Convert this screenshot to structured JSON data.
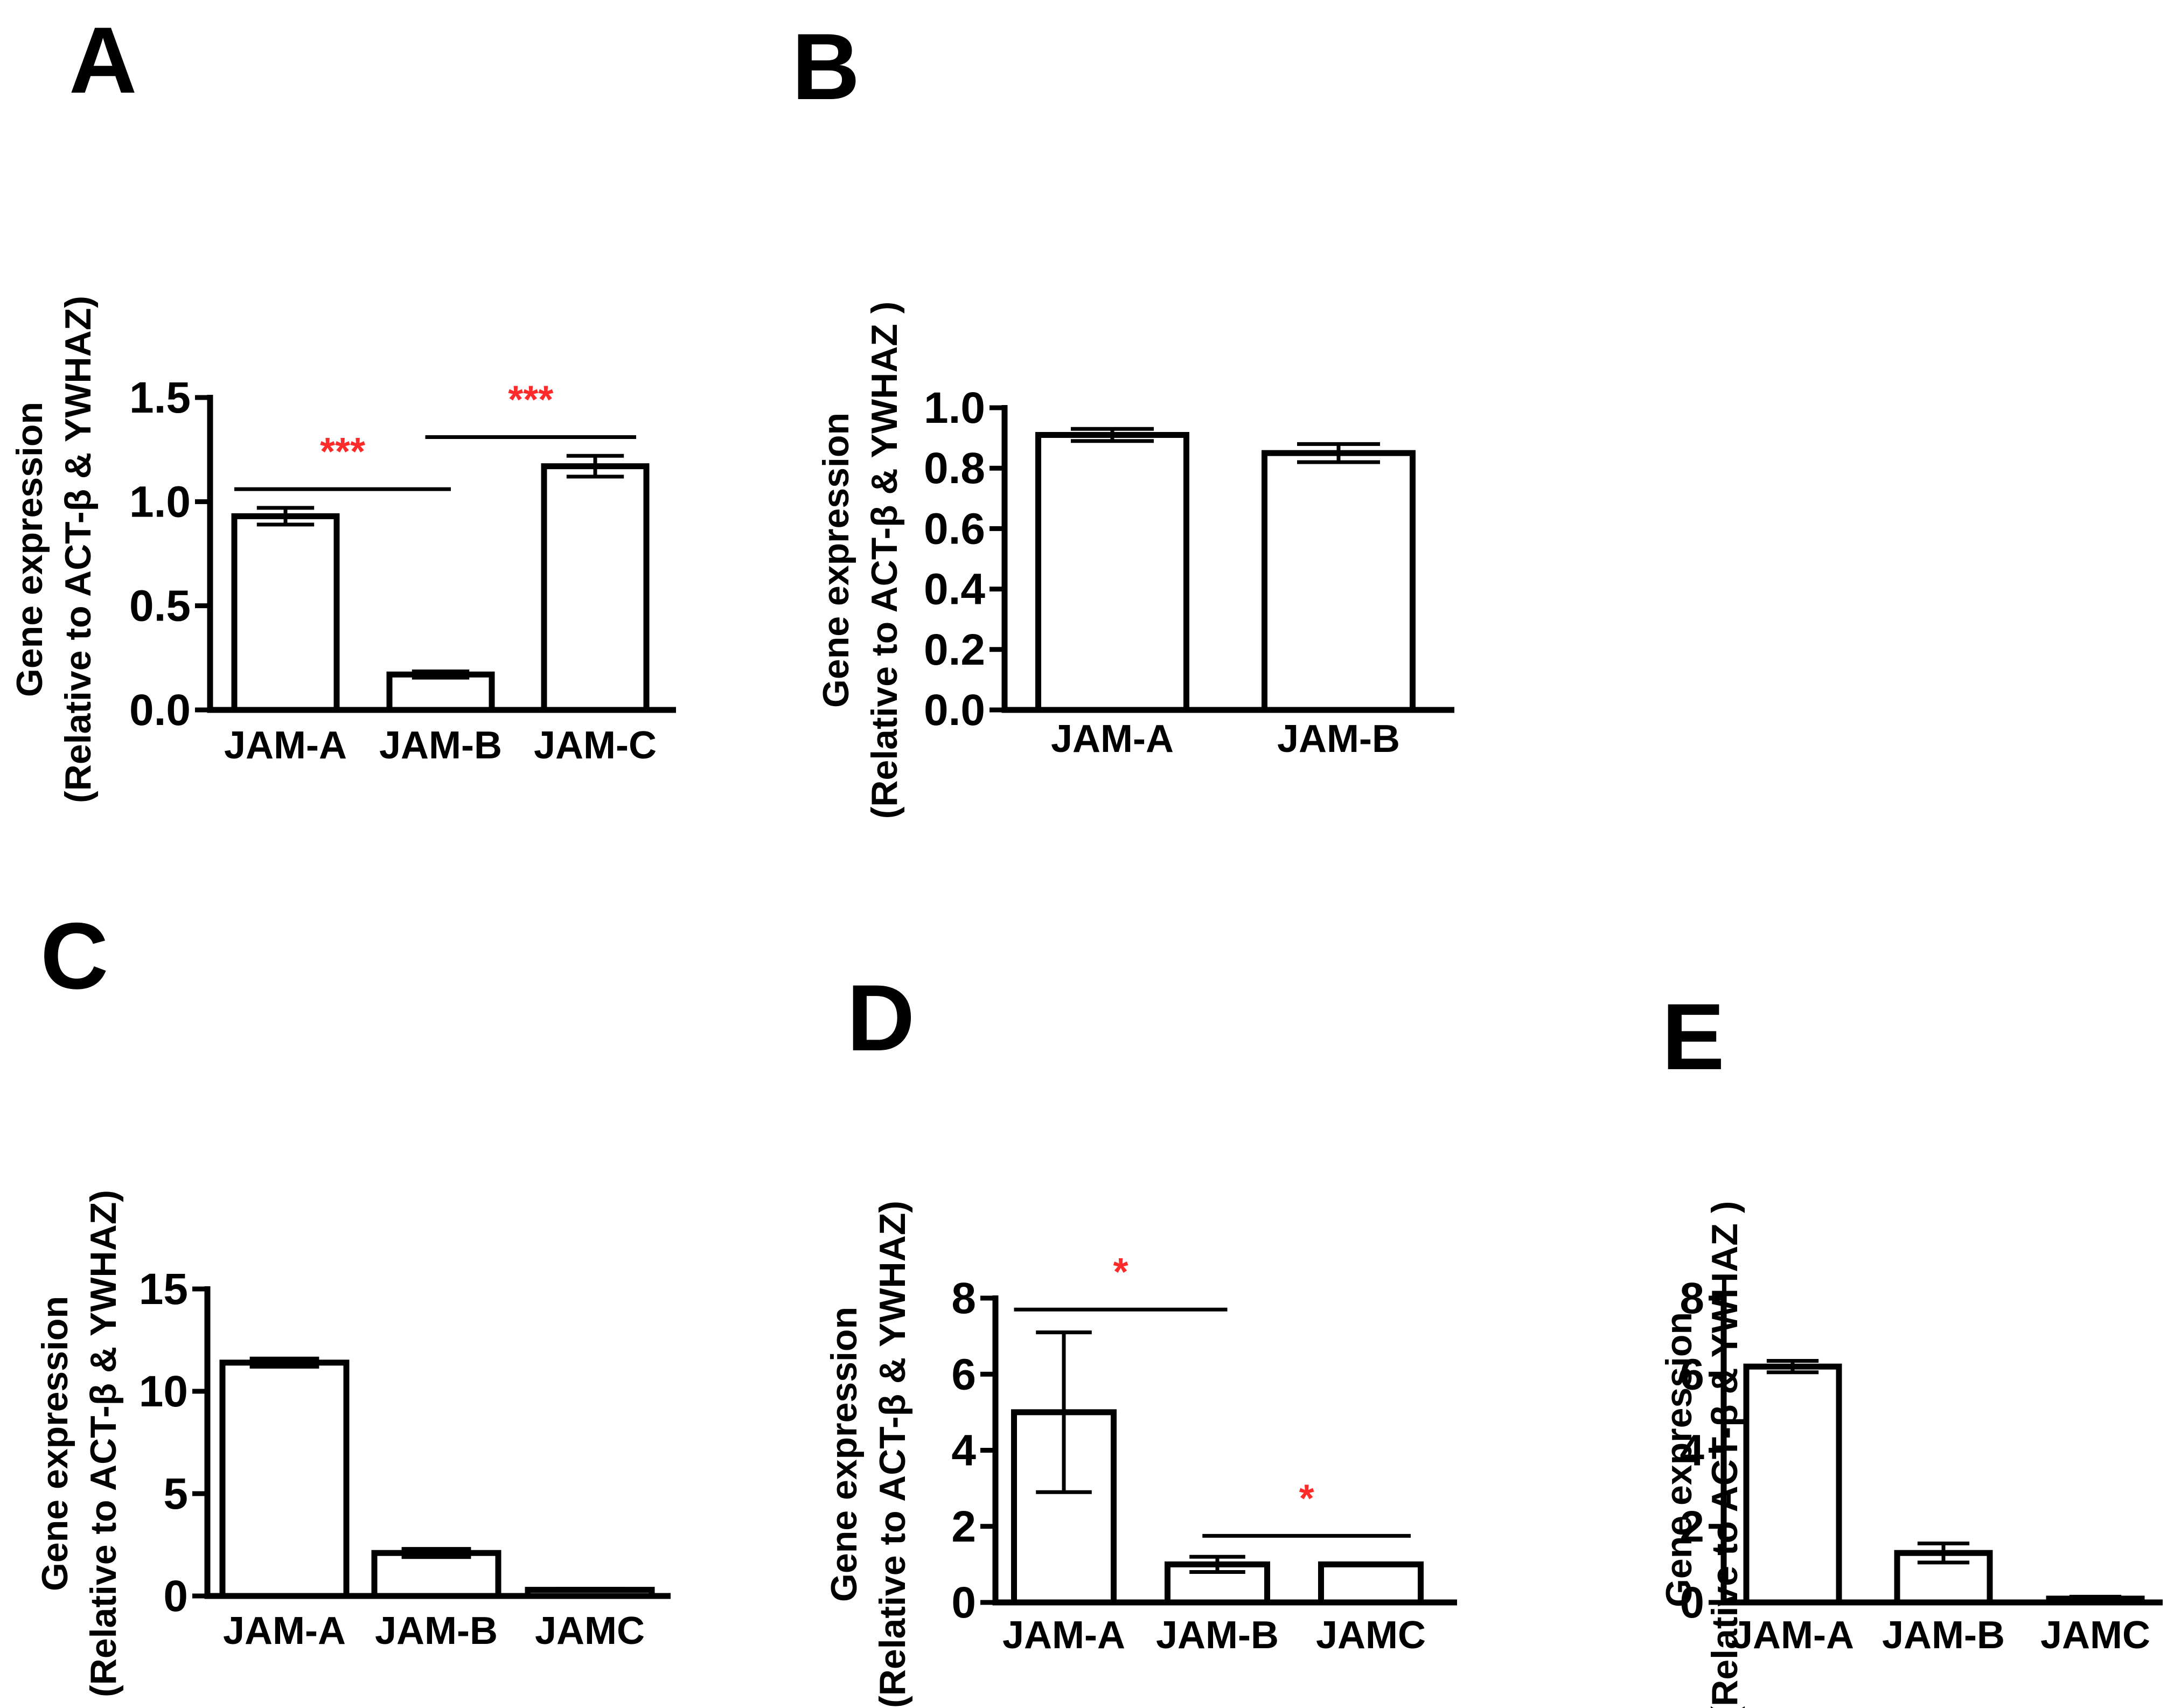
{
  "figure": {
    "panels": [
      "A",
      "B",
      "C",
      "D",
      "E"
    ]
  },
  "chart_data": [
    {
      "panel": "A",
      "type": "bar",
      "title": "",
      "xlabel": "",
      "ylabel_lines": [
        "Gene expression",
        "(Relative to ACT-β & YWHAZ)"
      ],
      "categories": [
        "JAM-A",
        "JAM-B",
        "JAM-C"
      ],
      "values": [
        0.93,
        0.17,
        1.17
      ],
      "errors": [
        0.04,
        0.015,
        0.05
      ],
      "ylim": [
        0,
        1.5
      ],
      "yticks": [
        "0.0",
        "0.5",
        "1.0",
        "1.5"
      ],
      "significance": [
        {
          "from": 0,
          "to": 1,
          "level": 1.06,
          "label": "***"
        },
        {
          "from": 1,
          "to": 2,
          "level": 1.31,
          "label": "***"
        }
      ]
    },
    {
      "panel": "B",
      "type": "bar",
      "title": "",
      "xlabel": "",
      "ylabel_lines": [
        "Gene expression",
        "(Relative to ACT-β & YWHAZ )"
      ],
      "categories": [
        "JAM-A",
        "JAM-B"
      ],
      "values": [
        0.91,
        0.85
      ],
      "errors": [
        0.02,
        0.03
      ],
      "ylim": [
        0,
        1.0
      ],
      "yticks": [
        "0.0",
        "0.2",
        "0.4",
        "0.6",
        "0.8",
        "1.0"
      ],
      "significance": []
    },
    {
      "panel": "C",
      "type": "bar",
      "title": "",
      "xlabel": "",
      "ylabel_lines": [
        "Gene expression",
        "(Relative to ACT-β & YWHAZ)"
      ],
      "categories": [
        "JAM-A",
        "JAM-B",
        "JAMC"
      ],
      "values": [
        11.4,
        2.1,
        0.3
      ],
      "errors": [
        0.2,
        0.2,
        0.05
      ],
      "ylim": [
        0,
        15
      ],
      "yticks": [
        "0",
        "5",
        "10",
        "15"
      ],
      "significance": []
    },
    {
      "panel": "D",
      "type": "bar",
      "title": "",
      "xlabel": "",
      "ylabel_lines": [
        "Gene expression",
        "(Relative to ACT-β & YWHAZ)"
      ],
      "categories": [
        "JAM-A",
        "JAM-B",
        "JAMC"
      ],
      "values": [
        5.0,
        1.0,
        1.0
      ],
      "errors": [
        2.1,
        0.2,
        0.0
      ],
      "ylim": [
        0,
        8
      ],
      "yticks": [
        "0",
        "2",
        "4",
        "6",
        "8"
      ],
      "significance": [
        {
          "from": 0,
          "to": 1,
          "level": 7.7,
          "label": "*"
        },
        {
          "from": 1,
          "to": 2,
          "level": 1.75,
          "label": "*"
        }
      ]
    },
    {
      "panel": "E",
      "type": "bar",
      "title": "",
      "xlabel": "",
      "ylabel_lines": [
        "Gene expression",
        "(Relative to ACT-β & YWHAZ )"
      ],
      "categories": [
        "JAM-A",
        "JAM-B",
        "JAMC"
      ],
      "values": [
        6.2,
        1.3,
        0.1
      ],
      "errors": [
        0.15,
        0.25,
        0.05
      ],
      "ylim": [
        0,
        8
      ],
      "yticks": [
        "0",
        "2",
        "4",
        "6",
        "8"
      ],
      "significance": []
    }
  ]
}
